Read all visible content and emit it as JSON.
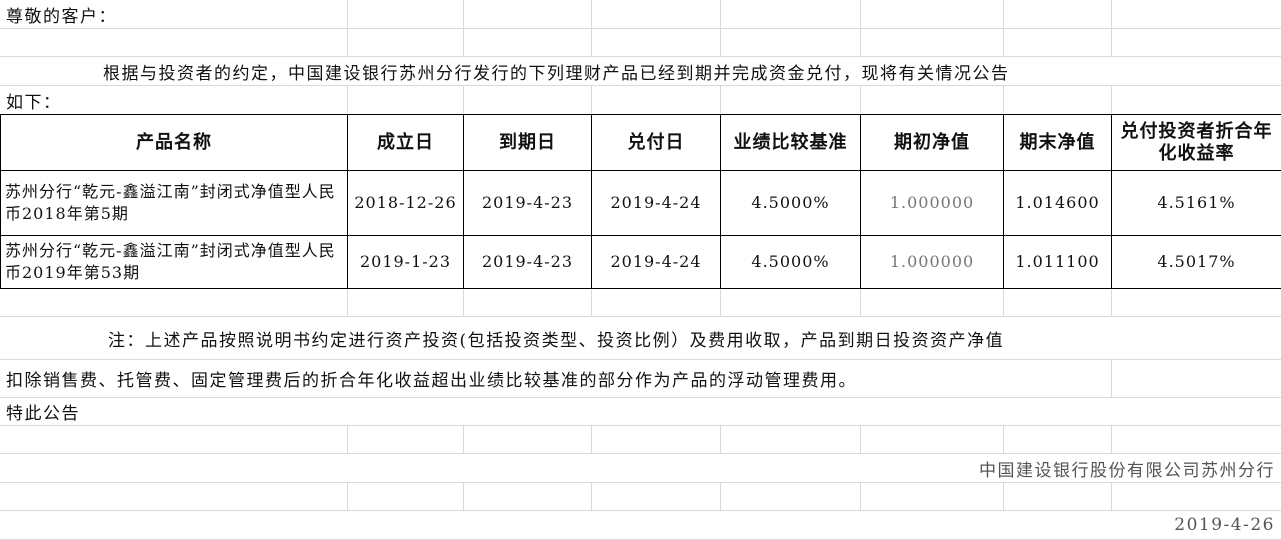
{
  "greeting": "尊敬的客户：",
  "intro": "根据与投资者的约定，中国建设银行苏州分行发行的下列理财产品已经到期并完成资金兑付，现将有关情况公告",
  "intro_cont": "如下：",
  "table": {
    "headers": [
      "产品名称",
      "成立日",
      "到期日",
      "兑付日",
      "业绩比较基准",
      "期初净值",
      "期末净值",
      "兑付投资者折合年化收益率"
    ],
    "rows": [
      [
        "苏州分行“乾元-鑫溢江南”封闭式净值型人民币2018年第5期",
        "2018-12-26",
        "2019-4-23",
        "2019-4-24",
        "4.5000%",
        "1.000000",
        "1.014600",
        "4.5161%"
      ],
      [
        "苏州分行“乾元-鑫溢江南”封闭式净值型人民币2019年第53期",
        "2019-1-23",
        "2019-4-23",
        "2019-4-24",
        "4.5000%",
        "1.000000",
        "1.011100",
        "4.5017%"
      ]
    ]
  },
  "note_line1": "注：上述产品按照说明书约定进行资产投资(包括投资类型、投资比例）及费用收取，产品到期日投资资产净值",
  "note_line2": "扣除销售费、托管费、固定管理费后的折合年化收益超出业绩比较基准的部分作为产品的浮动管理费用。",
  "closing": "特此公告",
  "signature": "中国建设银行股份有限公司苏州分行",
  "date": "2019-4-26"
}
